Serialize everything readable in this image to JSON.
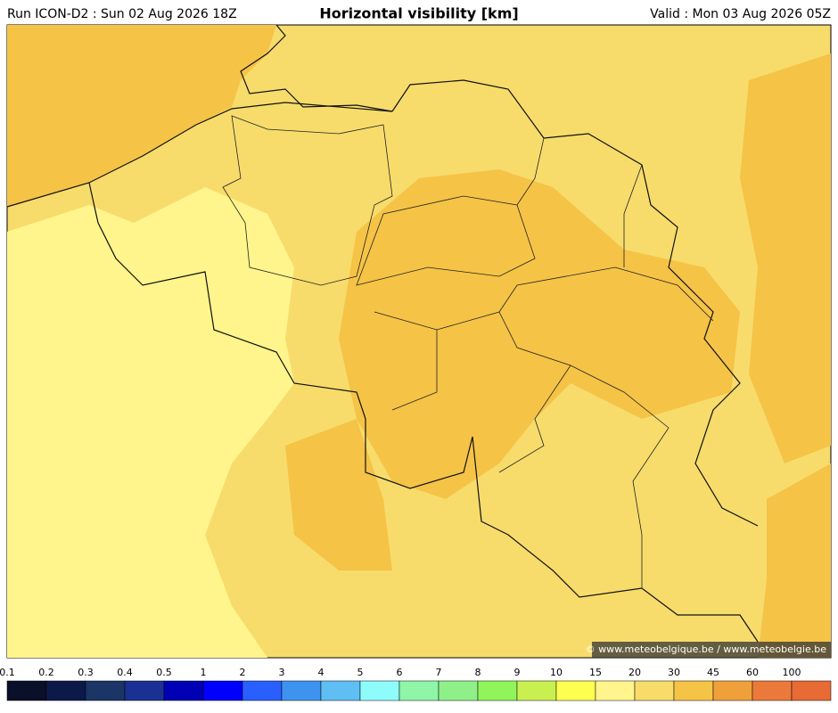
{
  "header": {
    "run": "Run ICON-D2 : Sun 02 Aug 2026 18Z",
    "title": "Horizontal visibility [km]",
    "valid": "Valid : Mon 03 Aug 2026 05Z"
  },
  "copyright": "© www.meteobelgique.be / www.meteobelgie.be",
  "legend": {
    "labels": [
      0.1,
      0.2,
      0.3,
      0.4,
      0.5,
      1,
      2,
      3,
      4,
      5,
      6,
      7,
      8,
      9,
      10,
      15,
      20,
      30,
      45,
      60,
      100
    ],
    "colors": [
      "#0a0f2a",
      "#0c1a4a",
      "#1a3566",
      "#1a3094",
      "#0000b4",
      "#0000ff",
      "#2a5fff",
      "#3f93f0",
      "#5fbff5",
      "#8ffcfc",
      "#8ff5a8",
      "#8ff08a",
      "#8ff55a",
      "#c8f050",
      "#ffff50",
      "#fff58c",
      "#f7dc6c",
      "#f5c346",
      "#f0a03a",
      "#eb7a3a",
      "#e86a34"
    ]
  }
}
